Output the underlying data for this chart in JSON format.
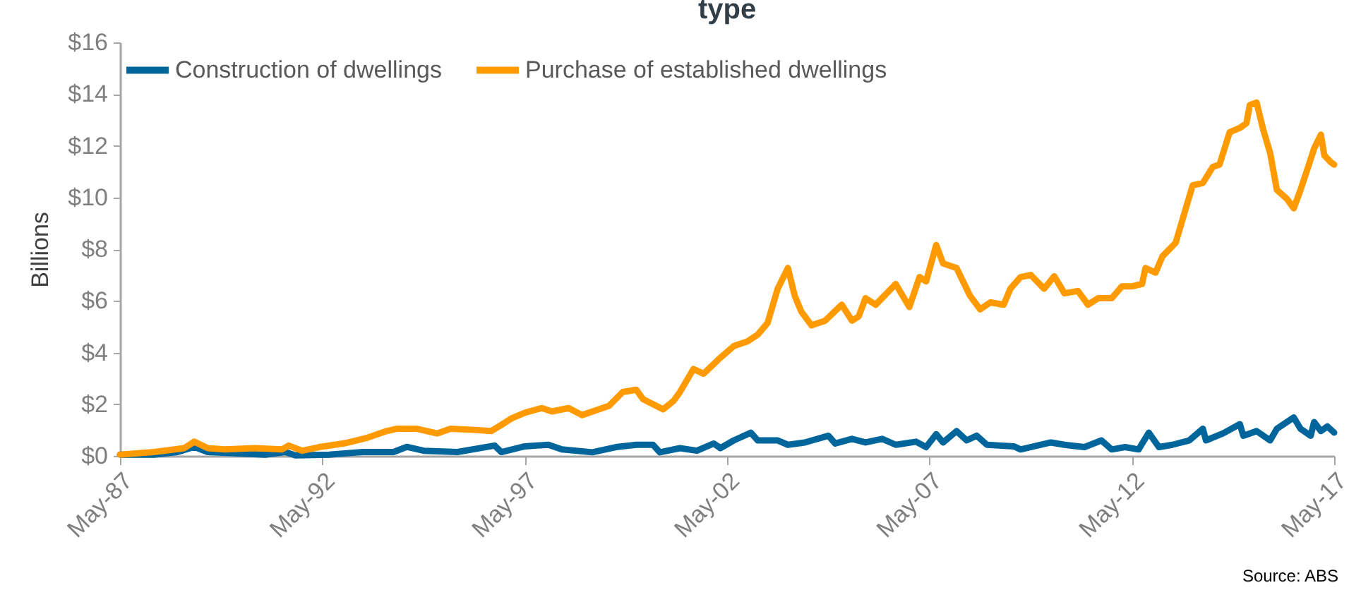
{
  "chart_data": {
    "type": "line",
    "title": "type",
    "ylabel": "Billions",
    "annotations": [
      "Source: ABS"
    ],
    "series": [
      {
        "name": "Construction of dwellings",
        "color": "#00659b",
        "x": [
          "1987-05",
          "1988-03",
          "1988-10",
          "1989-03",
          "1989-07",
          "1990-03",
          "1990-12",
          "1991-06",
          "1991-09",
          "1992-07",
          "1993-05",
          "1994-02",
          "1994-06",
          "1994-11",
          "1995-09",
          "1996-08",
          "1996-10",
          "1997-05",
          "1997-12",
          "1998-04",
          "1999-01",
          "1999-08",
          "2000-02",
          "2000-07",
          "2000-09",
          "2001-03",
          "2001-08",
          "2002-01",
          "2002-03",
          "2002-07",
          "2002-12",
          "2003-02",
          "2003-08",
          "2003-11",
          "2004-04",
          "2004-11",
          "2005-01",
          "2005-06",
          "2005-10",
          "2006-03",
          "2006-07",
          "2007-01",
          "2007-04",
          "2007-07",
          "2007-09",
          "2008-01",
          "2008-04",
          "2008-07",
          "2008-10",
          "2009-06",
          "2009-08",
          "2009-12",
          "2010-05",
          "2010-09",
          "2011-03",
          "2011-08",
          "2011-11",
          "2012-03",
          "2012-07",
          "2012-10",
          "2013-01",
          "2013-05",
          "2013-10",
          "2014-02",
          "2014-03",
          "2014-08",
          "2015-01",
          "2015-02",
          "2015-06",
          "2015-10",
          "2015-12",
          "2016-05",
          "2016-07",
          "2016-10",
          "2016-11",
          "2017-01",
          "2017-03",
          "2017-05"
        ],
        "values": [
          0.05,
          0.05,
          0.15,
          0.35,
          0.15,
          0.1,
          0.05,
          0.15,
          0.02,
          0.05,
          0.15,
          0.15,
          0.35,
          0.2,
          0.15,
          0.4,
          0.15,
          0.37,
          0.43,
          0.25,
          0.14,
          0.34,
          0.43,
          0.43,
          0.14,
          0.3,
          0.2,
          0.48,
          0.3,
          0.6,
          0.9,
          0.6,
          0.6,
          0.43,
          0.52,
          0.78,
          0.48,
          0.66,
          0.52,
          0.66,
          0.43,
          0.55,
          0.34,
          0.84,
          0.52,
          0.96,
          0.6,
          0.78,
          0.43,
          0.37,
          0.25,
          0.37,
          0.52,
          0.43,
          0.34,
          0.6,
          0.25,
          0.34,
          0.25,
          0.9,
          0.34,
          0.43,
          0.6,
          1.05,
          0.6,
          0.87,
          1.23,
          0.78,
          0.96,
          0.6,
          1.05,
          1.49,
          1.05,
          0.78,
          1.31,
          0.96,
          1.14,
          0.9
        ]
      },
      {
        "name": "Purchase of established dwellings",
        "color": "#ff9a00",
        "x": [
          "1987-05",
          "1988-03",
          "1988-06",
          "1988-12",
          "1989-03",
          "1989-07",
          "1989-12",
          "1990-09",
          "1991-05",
          "1991-07",
          "1991-11",
          "1992-04",
          "1992-12",
          "1993-06",
          "1993-12",
          "1994-03",
          "1994-09",
          "1995-03",
          "1995-07",
          "1996-03",
          "1996-07",
          "1996-10",
          "1997-01",
          "1997-05",
          "1997-10",
          "1998-01",
          "1998-06",
          "1998-10",
          "1999-02",
          "1999-06",
          "1999-10",
          "2000-02",
          "2000-04",
          "2000-10",
          "2001-01",
          "2001-03",
          "2001-07",
          "2001-10",
          "2002-03",
          "2002-07",
          "2002-11",
          "2003-02",
          "2003-05",
          "2003-08",
          "2003-11",
          "2004-01",
          "2004-03",
          "2004-06",
          "2004-10",
          "2005-03",
          "2005-06",
          "2005-08",
          "2005-10",
          "2006-01",
          "2006-07",
          "2006-11",
          "2007-02",
          "2007-04",
          "2007-07",
          "2007-09",
          "2008-01",
          "2008-05",
          "2008-08",
          "2008-11",
          "2009-03",
          "2009-05",
          "2009-08",
          "2009-11",
          "2010-03",
          "2010-06",
          "2010-09",
          "2011-01",
          "2011-04",
          "2011-07",
          "2011-11",
          "2012-02",
          "2012-05",
          "2012-08",
          "2012-09",
          "2012-12",
          "2013-02",
          "2013-06",
          "2013-08",
          "2013-11",
          "2014-02",
          "2014-05",
          "2014-07",
          "2014-10",
          "2015-01",
          "2015-03",
          "2015-04",
          "2015-06",
          "2015-08",
          "2015-10",
          "2015-12",
          "2016-03",
          "2016-05",
          "2016-07",
          "2016-09",
          "2016-11",
          "2017-01",
          "2017-02",
          "2017-04",
          "2017-05"
        ],
        "values": [
          0.05,
          0.15,
          0.2,
          0.3,
          0.55,
          0.3,
          0.25,
          0.3,
          0.25,
          0.4,
          0.2,
          0.34,
          0.5,
          0.69,
          0.96,
          1.05,
          1.05,
          0.87,
          1.05,
          1.0,
          0.96,
          1.2,
          1.45,
          1.67,
          1.85,
          1.72,
          1.85,
          1.58,
          1.76,
          1.94,
          2.47,
          2.56,
          2.2,
          1.8,
          2.12,
          2.47,
          3.36,
          3.18,
          3.8,
          4.25,
          4.43,
          4.69,
          5.14,
          6.47,
          7.27,
          6.2,
          5.58,
          5.05,
          5.23,
          5.85,
          5.23,
          5.4,
          6.1,
          5.85,
          6.65,
          5.76,
          6.92,
          6.75,
          8.16,
          7.45,
          7.27,
          6.2,
          5.67,
          5.94,
          5.85,
          6.47,
          6.92,
          7.0,
          6.47,
          6.95,
          6.29,
          6.38,
          5.85,
          6.1,
          6.1,
          6.56,
          6.56,
          6.65,
          7.27,
          7.09,
          7.72,
          8.25,
          9.14,
          10.47,
          10.56,
          11.18,
          11.27,
          12.52,
          12.69,
          12.87,
          13.58,
          13.67,
          12.6,
          11.72,
          10.29,
          9.94,
          9.58,
          10.29,
          11.09,
          11.89,
          12.43,
          11.63,
          11.36,
          11.27
        ]
      }
    ],
    "xlim": [
      "1987-05",
      "2017-05"
    ],
    "xticks": [
      {
        "value": "1987-05",
        "label": "May-87"
      },
      {
        "value": "1992-05",
        "label": "May-92"
      },
      {
        "value": "1997-05",
        "label": "May-97"
      },
      {
        "value": "2002-05",
        "label": "May-02"
      },
      {
        "value": "2007-05",
        "label": "May-07"
      },
      {
        "value": "2012-05",
        "label": "May-12"
      },
      {
        "value": "2017-05",
        "label": "May-17"
      }
    ],
    "ylim": [
      0,
      16
    ],
    "yticks": [
      {
        "value": 0,
        "label": "$0"
      },
      {
        "value": 2,
        "label": "$2"
      },
      {
        "value": 4,
        "label": "$4"
      },
      {
        "value": 6,
        "label": "$6"
      },
      {
        "value": 8,
        "label": "$8"
      },
      {
        "value": 10,
        "label": "$10"
      },
      {
        "value": 12,
        "label": "$12"
      },
      {
        "value": 14,
        "label": "$14"
      },
      {
        "value": 16,
        "label": "$16"
      }
    ],
    "grid": false,
    "legend": "top left",
    "line_style": "solid"
  }
}
